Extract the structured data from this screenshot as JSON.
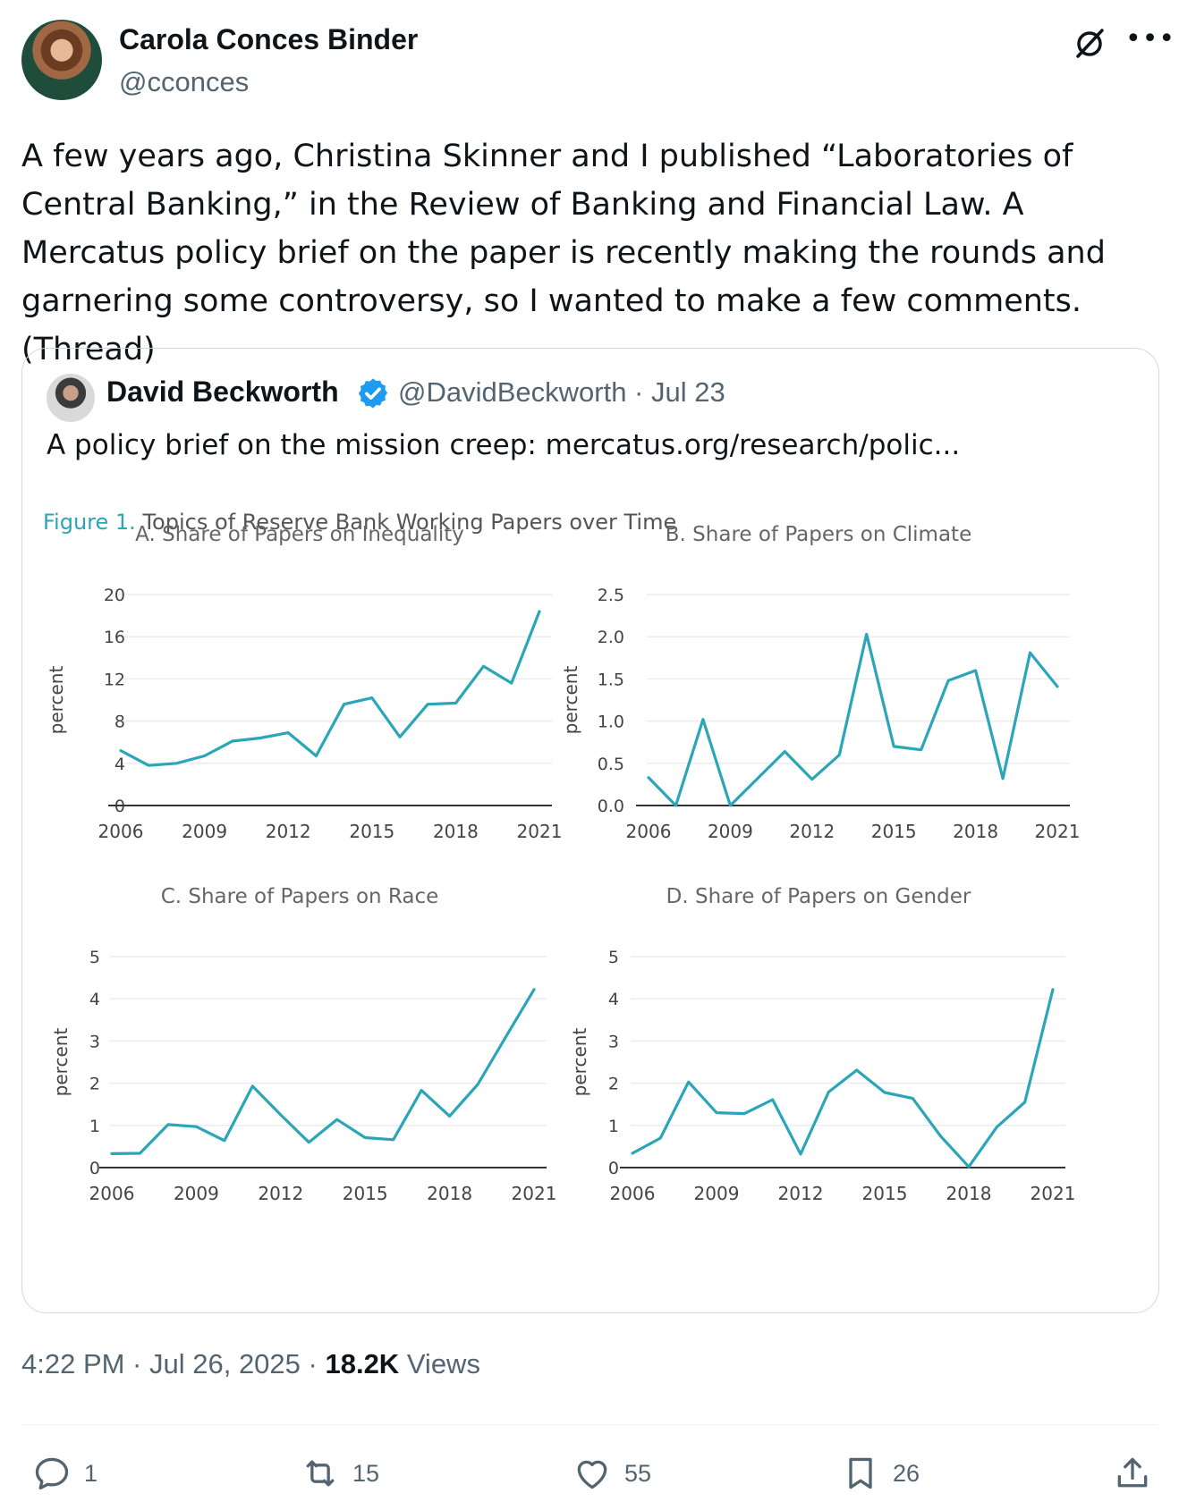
{
  "author": {
    "name": "Carola Conces Binder",
    "handle": "@cconces"
  },
  "tweet_text": "A few years ago, Christina Skinner and I published “Laboratories of Central Banking,” in the Review of Banking and Financial Law. A Mercatus policy brief on the paper is recently making the rounds and garnering some controversy, so I wanted to make a few comments. (Thread)",
  "quote": {
    "name": "David Beckworth",
    "handle_date": "@DavidBeckworth · Jul 23",
    "text": "A policy brief on the mission creep: mercatus.org/research/polic..."
  },
  "figure": {
    "label": "Figure 1.",
    "title": "Topics of Reserve Bank Working Papers over Time"
  },
  "chart_data": [
    {
      "type": "line",
      "title": "A. Share of Papers on Inequality",
      "ylabel": "percent",
      "x": [
        2006,
        2007,
        2008,
        2009,
        2010,
        2011,
        2012,
        2013,
        2014,
        2015,
        2016,
        2017,
        2018,
        2019,
        2020,
        2021
      ],
      "values": [
        5.2,
        3.8,
        4.0,
        4.7,
        6.1,
        6.4,
        6.9,
        4.7,
        9.6,
        10.2,
        6.5,
        9.6,
        9.7,
        13.2,
        11.6,
        18.4
      ],
      "ylim": [
        0,
        20
      ],
      "yticks": [
        "0",
        "4",
        "8",
        "12",
        "16",
        "20"
      ],
      "xticks": [
        "2006",
        "2009",
        "2012",
        "2015",
        "2018",
        "2021"
      ]
    },
    {
      "type": "line",
      "title": "B. Share of Papers on Climate",
      "ylabel": "percent",
      "x": [
        2006,
        2007,
        2008,
        2009,
        2010,
        2011,
        2012,
        2013,
        2014,
        2015,
        2016,
        2017,
        2018,
        2019,
        2020,
        2021
      ],
      "values": [
        0.33,
        0.0,
        1.02,
        0.0,
        0.32,
        0.64,
        0.31,
        0.6,
        2.03,
        0.7,
        0.66,
        1.48,
        1.6,
        0.32,
        1.81,
        1.41
      ],
      "ylim": [
        0,
        2.5
      ],
      "yticks": [
        "0.0",
        "0.5",
        "1.0",
        "1.5",
        "2.0",
        "2.5"
      ],
      "xticks": [
        "2006",
        "2009",
        "2012",
        "2015",
        "2018",
        "2021"
      ]
    },
    {
      "type": "line",
      "title": "C. Share of Papers on Race",
      "ylabel": "percent",
      "x": [
        2006,
        2007,
        2008,
        2009,
        2010,
        2011,
        2012,
        2013,
        2014,
        2015,
        2016,
        2017,
        2018,
        2019,
        2020,
        2021
      ],
      "values": [
        0.33,
        0.34,
        1.02,
        0.97,
        0.64,
        1.93,
        1.25,
        0.6,
        1.14,
        0.71,
        0.66,
        1.83,
        1.22,
        1.97,
        3.1,
        4.22
      ],
      "ylim": [
        0,
        5
      ],
      "yticks": [
        "0",
        "1",
        "2",
        "3",
        "4",
        "5"
      ],
      "xticks": [
        "2006",
        "2009",
        "2012",
        "2015",
        "2018",
        "2021"
      ]
    },
    {
      "type": "line",
      "title": "D. Share of Papers on Gender",
      "ylabel": "percent",
      "x": [
        2006,
        2007,
        2008,
        2009,
        2010,
        2011,
        2012,
        2013,
        2014,
        2015,
        2016,
        2017,
        2018,
        2019,
        2020,
        2021
      ],
      "values": [
        0.34,
        0.7,
        2.03,
        1.3,
        1.28,
        1.61,
        0.32,
        1.79,
        2.31,
        1.78,
        1.64,
        0.74,
        0.02,
        0.96,
        1.55,
        4.22
      ],
      "ylim": [
        0,
        5
      ],
      "yticks": [
        "0",
        "1",
        "2",
        "3",
        "4",
        "5"
      ],
      "xticks": [
        "2006",
        "2009",
        "2012",
        "2015",
        "2018",
        "2021"
      ]
    }
  ],
  "meta": {
    "time_date": "4:22 PM · Jul 26, 2025 · ",
    "views_count": "18.2K",
    "views_label": " Views"
  },
  "actions": {
    "replies": "1",
    "reposts": "15",
    "likes": "55",
    "bookmarks": "26"
  },
  "colors": {
    "series": "#2aa6b8",
    "verified": "#1d9bf0"
  }
}
